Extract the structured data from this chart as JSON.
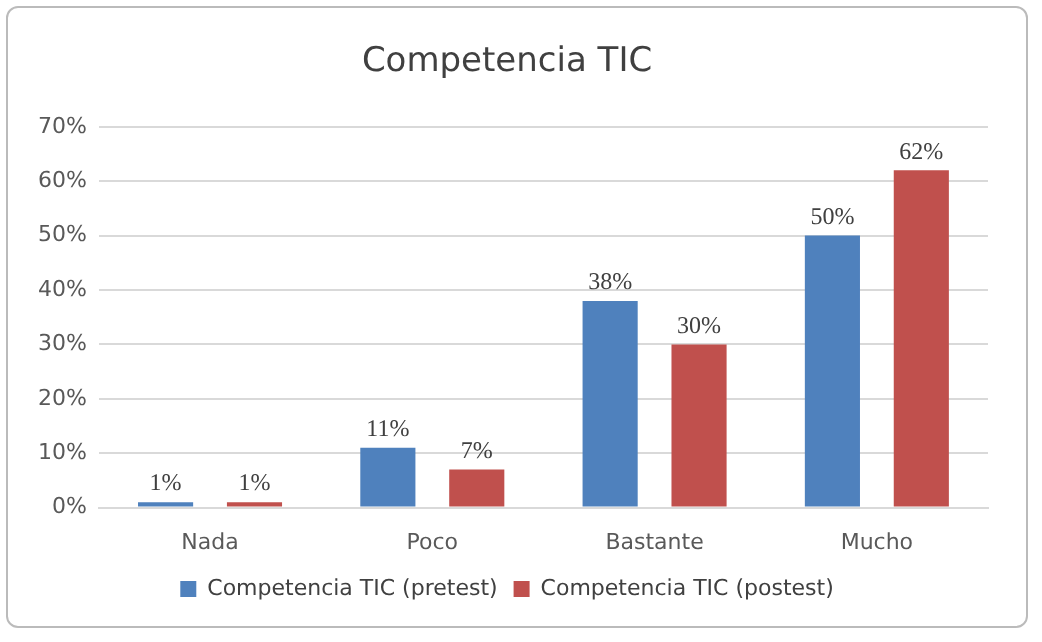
{
  "chart_data": {
    "type": "bar",
    "title": "Competencia TIC",
    "categories": [
      "Nada",
      "Poco",
      "Bastante",
      "Mucho"
    ],
    "series": [
      {
        "name": "Competencia TIC (pretest)",
        "color": "#4f81bd",
        "values": [
          1,
          11,
          38,
          50
        ],
        "value_labels": [
          "1%",
          "11%",
          "38%",
          "50%"
        ]
      },
      {
        "name": "Competencia TIC (postest)",
        "color": "#c0504d",
        "values": [
          1,
          7,
          30,
          62
        ],
        "value_labels": [
          "1%",
          "7%",
          "30%",
          "62%"
        ]
      }
    ],
    "ylim": [
      0,
      70
    ],
    "yticks": [
      {
        "value": 0,
        "label": "0%"
      },
      {
        "value": 10,
        "label": "10%"
      },
      {
        "value": 20,
        "label": "20%"
      },
      {
        "value": 30,
        "label": "30%"
      },
      {
        "value": 40,
        "label": "40%"
      },
      {
        "value": 50,
        "label": "50%"
      },
      {
        "value": 60,
        "label": "60%"
      },
      {
        "value": 70,
        "label": "70%"
      }
    ],
    "grid": "y",
    "legend": "bottom"
  }
}
